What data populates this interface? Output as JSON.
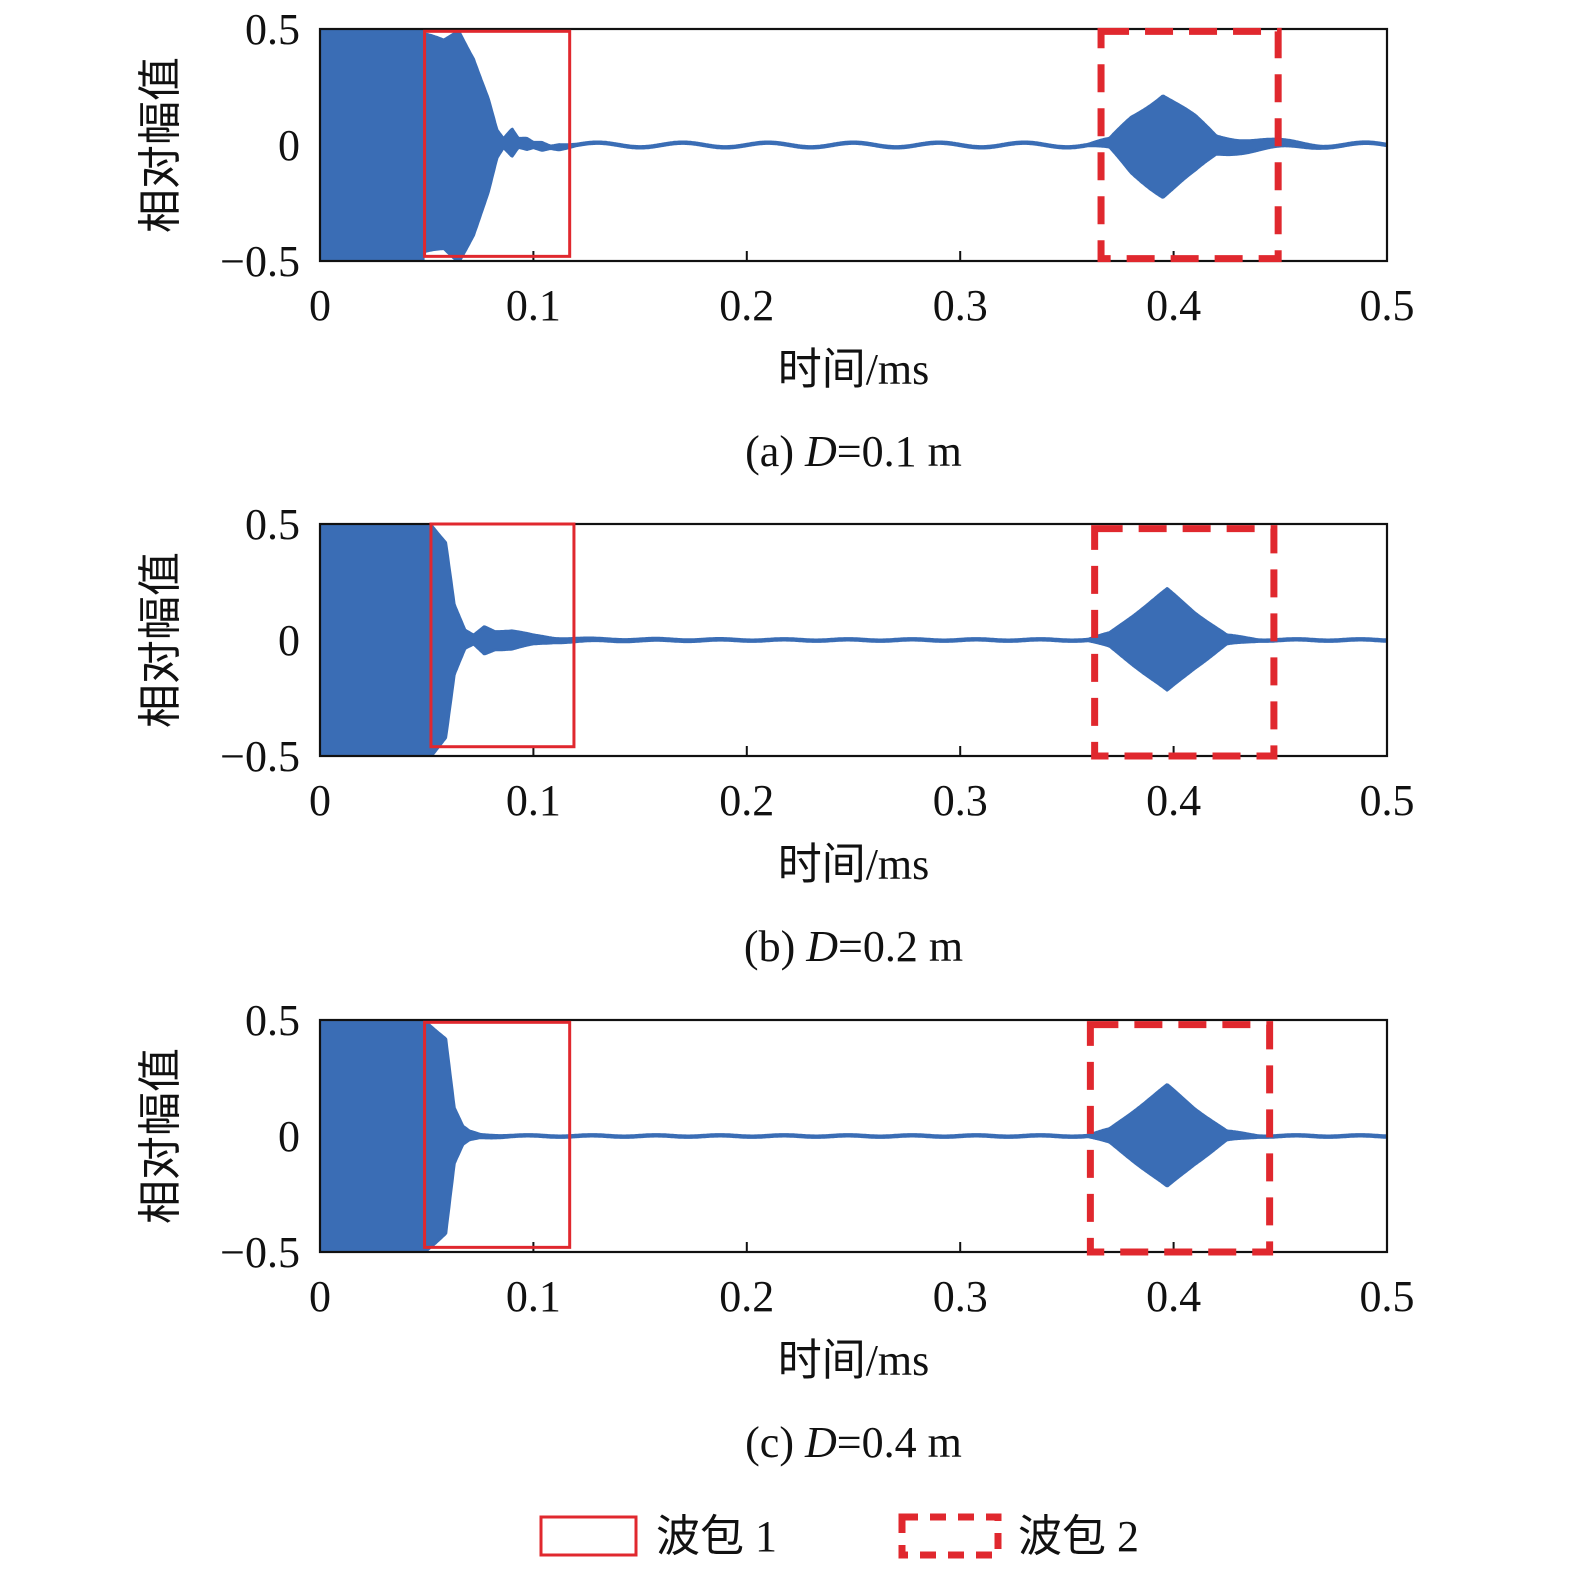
{
  "chart_data": [
    {
      "type": "line",
      "caption": "(a) D=0.1 m",
      "caption_prefix": "(a) ",
      "caption_var": "D",
      "caption_rest": "=0.1 m",
      "xlabel": "时间/ms",
      "ylabel": "相对幅值",
      "xlim": [
        0,
        0.5
      ],
      "ylim": [
        -0.5,
        0.5
      ],
      "xticks": [
        "0",
        "0.1",
        "0.2",
        "0.3",
        "0.4",
        "0.5"
      ],
      "yticks": [
        "0.5",
        "0",
        "−0.5"
      ],
      "series": [
        {
          "color": "#3a6db5",
          "excitation": {
            "t_start": 0,
            "t_end": 0.049,
            "amplitude": 0.5
          },
          "envelope": [
            [
              0.049,
              0.47
            ],
            [
              0.058,
              0.45
            ],
            [
              0.065,
              0.5
            ],
            [
              0.072,
              0.38
            ],
            [
              0.079,
              0.2
            ],
            [
              0.083,
              0.06
            ],
            [
              0.086,
              0.02
            ],
            [
              0.09,
              0.06
            ],
            [
              0.093,
              0.02
            ],
            [
              0.097,
              0.025
            ],
            [
              0.1,
              0.012
            ],
            [
              0.104,
              0.018
            ],
            [
              0.108,
              0.006
            ],
            [
              0.112,
              0.012
            ],
            [
              0.12,
              0.004
            ],
            [
              0.36,
              0.004
            ],
            [
              0.37,
              0.02
            ],
            [
              0.38,
              0.12
            ],
            [
              0.395,
              0.22
            ],
            [
              0.41,
              0.12
            ],
            [
              0.42,
              0.04
            ],
            [
              0.43,
              0.03
            ],
            [
              0.45,
              0.015
            ],
            [
              0.47,
              0.005
            ],
            [
              0.5,
              0.004
            ]
          ],
          "baseline_wave": {
            "amplitude": 0.01,
            "period": 0.04
          }
        }
      ],
      "boxes": [
        {
          "name": "波包 1",
          "x": [
            0.049,
            0.117
          ],
          "y": [
            -0.48,
            0.49
          ]
        },
        {
          "name": "波包 2",
          "x": [
            0.366,
            0.449
          ],
          "y": [
            -0.49,
            0.49
          ]
        }
      ]
    },
    {
      "type": "line",
      "caption": "(b) D=0.2 m",
      "caption_prefix": "(b) ",
      "caption_var": "D",
      "caption_rest": "=0.2 m",
      "xlabel": "时间/ms",
      "ylabel": "相对幅值",
      "xlim": [
        0,
        0.5
      ],
      "ylim": [
        -0.5,
        0.5
      ],
      "xticks": [
        "0",
        "0.1",
        "0.2",
        "0.3",
        "0.4",
        "0.5"
      ],
      "yticks": [
        "0.5",
        "0",
        "−0.5"
      ],
      "series": [
        {
          "color": "#3a6db5",
          "excitation": {
            "t_start": 0,
            "t_end": 0.052,
            "amplitude": 0.5
          },
          "envelope": [
            [
              0.052,
              0.5
            ],
            [
              0.059,
              0.42
            ],
            [
              0.063,
              0.15
            ],
            [
              0.068,
              0.04
            ],
            [
              0.072,
              0.02
            ],
            [
              0.077,
              0.06
            ],
            [
              0.082,
              0.04
            ],
            [
              0.09,
              0.04
            ],
            [
              0.1,
              0.02
            ],
            [
              0.11,
              0.01
            ],
            [
              0.13,
              0.006
            ],
            [
              0.2,
              0.004
            ],
            [
              0.36,
              0.004
            ],
            [
              0.37,
              0.03
            ],
            [
              0.38,
              0.1
            ],
            [
              0.397,
              0.22
            ],
            [
              0.41,
              0.12
            ],
            [
              0.425,
              0.02
            ],
            [
              0.44,
              0.004
            ],
            [
              0.5,
              0.004
            ]
          ],
          "baseline_wave": {
            "amplitude": 0.003,
            "period": 0.03
          }
        }
      ],
      "boxes": [
        {
          "name": "波包 1",
          "x": [
            0.052,
            0.119
          ],
          "y": [
            -0.46,
            0.5
          ]
        },
        {
          "name": "波包 2",
          "x": [
            0.363,
            0.447
          ],
          "y": [
            -0.5,
            0.48
          ]
        }
      ]
    },
    {
      "type": "line",
      "caption": "(c) D=0.4 m",
      "caption_prefix": "(c) ",
      "caption_var": "D",
      "caption_rest": "=0.4 m",
      "xlabel": "时间/ms",
      "ylabel": "相对幅值",
      "xlim": [
        0,
        0.5
      ],
      "ylim": [
        -0.5,
        0.5
      ],
      "xticks": [
        "0",
        "0.1",
        "0.2",
        "0.3",
        "0.4",
        "0.5"
      ],
      "yticks": [
        "0.5",
        "0",
        "−0.5"
      ],
      "series": [
        {
          "color": "#3a6db5",
          "excitation": {
            "t_start": 0,
            "t_end": 0.049,
            "amplitude": 0.5
          },
          "envelope": [
            [
              0.049,
              0.5
            ],
            [
              0.059,
              0.42
            ],
            [
              0.063,
              0.12
            ],
            [
              0.067,
              0.04
            ],
            [
              0.07,
              0.02
            ],
            [
              0.075,
              0.008
            ],
            [
              0.09,
              0.004
            ],
            [
              0.36,
              0.004
            ],
            [
              0.37,
              0.03
            ],
            [
              0.38,
              0.1
            ],
            [
              0.397,
              0.22
            ],
            [
              0.41,
              0.12
            ],
            [
              0.425,
              0.02
            ],
            [
              0.44,
              0.004
            ],
            [
              0.5,
              0.004
            ]
          ],
          "baseline_wave": {
            "amplitude": 0.003,
            "period": 0.03
          }
        }
      ],
      "boxes": [
        {
          "name": "波包 1",
          "x": [
            0.049,
            0.117
          ],
          "y": [
            -0.48,
            0.49
          ]
        },
        {
          "name": "波包 2",
          "x": [
            0.361,
            0.445
          ],
          "y": [
            -0.5,
            0.48
          ]
        }
      ]
    }
  ],
  "legend": {
    "position": "bottom-center",
    "items": [
      {
        "label": "波包 1",
        "style": "solid",
        "color": "#e0282e"
      },
      {
        "label": "波包 2",
        "style": "dashed",
        "color": "#e0282e"
      }
    ]
  }
}
